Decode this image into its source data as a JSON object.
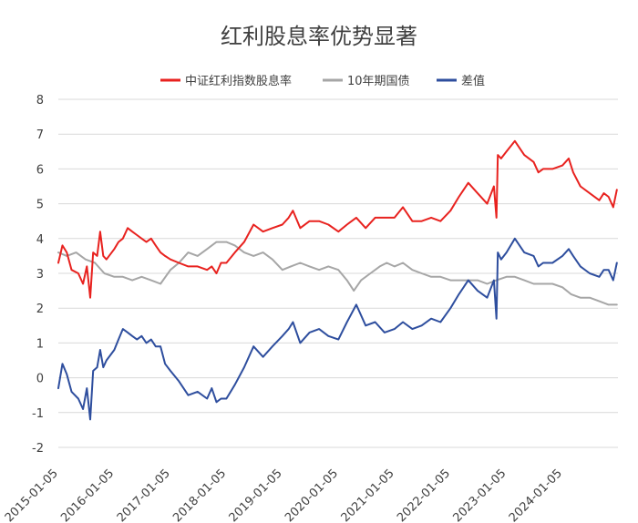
{
  "chart_data": {
    "type": "line",
    "title": "红利股息率优势显著",
    "xlabel": "",
    "ylabel": "",
    "ylim": [
      -2,
      8
    ],
    "y_ticks": [
      "8",
      "7",
      "6",
      "5",
      "4",
      "3",
      "2",
      "1",
      "0",
      "-1",
      "-2"
    ],
    "x_ticks": [
      "2015-01-05",
      "2016-01-05",
      "2017-01-05",
      "2018-01-05",
      "2019-01-05",
      "2020-01-05",
      "2021-01-05",
      "2022-01-05",
      "2023-01-05",
      "2024-01-05"
    ],
    "grid": true,
    "legend_position": "top",
    "series": [
      {
        "name": "中证红利指数股息率",
        "color": "#e8221f",
        "points": [
          [
            "2015-01-05",
            3.3
          ],
          [
            "2015-02-01",
            3.8
          ],
          [
            "2015-03-01",
            3.6
          ],
          [
            "2015-04-01",
            3.1
          ],
          [
            "2015-05-15",
            3.0
          ],
          [
            "2015-06-15",
            2.7
          ],
          [
            "2015-07-10",
            3.2
          ],
          [
            "2015-08-01",
            2.3
          ],
          [
            "2015-08-20",
            3.6
          ],
          [
            "2015-09-15",
            3.5
          ],
          [
            "2015-10-05",
            4.2
          ],
          [
            "2015-10-25",
            3.5
          ],
          [
            "2015-11-15",
            3.4
          ],
          [
            "2016-01-05",
            3.7
          ],
          [
            "2016-02-01",
            3.9
          ],
          [
            "2016-03-01",
            4.0
          ],
          [
            "2016-04-01",
            4.3
          ],
          [
            "2016-05-01",
            4.2
          ],
          [
            "2016-06-01",
            4.1
          ],
          [
            "2016-07-01",
            4.0
          ],
          [
            "2016-08-01",
            3.9
          ],
          [
            "2016-09-01",
            4.0
          ],
          [
            "2016-10-01",
            3.8
          ],
          [
            "2016-11-01",
            3.6
          ],
          [
            "2016-12-01",
            3.5
          ],
          [
            "2017-01-05",
            3.4
          ],
          [
            "2017-03-01",
            3.3
          ],
          [
            "2017-05-01",
            3.2
          ],
          [
            "2017-07-01",
            3.2
          ],
          [
            "2017-09-01",
            3.1
          ],
          [
            "2017-10-01",
            3.2
          ],
          [
            "2017-11-01",
            3.0
          ],
          [
            "2017-12-01",
            3.3
          ],
          [
            "2018-01-05",
            3.3
          ],
          [
            "2018-03-01",
            3.6
          ],
          [
            "2018-05-01",
            3.9
          ],
          [
            "2018-07-01",
            4.4
          ],
          [
            "2018-09-01",
            4.2
          ],
          [
            "2018-11-01",
            4.3
          ],
          [
            "2019-01-05",
            4.4
          ],
          [
            "2019-02-15",
            4.6
          ],
          [
            "2019-03-15",
            4.8
          ],
          [
            "2019-05-01",
            4.3
          ],
          [
            "2019-07-01",
            4.5
          ],
          [
            "2019-09-01",
            4.5
          ],
          [
            "2019-11-01",
            4.4
          ],
          [
            "2020-01-05",
            4.2
          ],
          [
            "2020-03-01",
            4.4
          ],
          [
            "2020-05-01",
            4.6
          ],
          [
            "2020-07-01",
            4.3
          ],
          [
            "2020-09-01",
            4.6
          ],
          [
            "2020-11-01",
            4.6
          ],
          [
            "2021-01-05",
            4.6
          ],
          [
            "2021-03-01",
            4.9
          ],
          [
            "2021-05-01",
            4.5
          ],
          [
            "2021-07-01",
            4.5
          ],
          [
            "2021-09-01",
            4.6
          ],
          [
            "2021-11-01",
            4.5
          ],
          [
            "2022-01-05",
            4.8
          ],
          [
            "2022-03-01",
            5.2
          ],
          [
            "2022-05-01",
            5.6
          ],
          [
            "2022-07-01",
            5.3
          ],
          [
            "2022-09-01",
            5.0
          ],
          [
            "2022-10-15",
            5.5
          ],
          [
            "2022-11-01",
            4.6
          ],
          [
            "2022-11-10",
            6.4
          ],
          [
            "2022-12-01",
            6.3
          ],
          [
            "2023-01-05",
            6.5
          ],
          [
            "2023-03-01",
            6.8
          ],
          [
            "2023-05-01",
            6.4
          ],
          [
            "2023-07-01",
            6.2
          ],
          [
            "2023-08-01",
            5.9
          ],
          [
            "2023-09-01",
            6.0
          ],
          [
            "2023-11-01",
            6.0
          ],
          [
            "2024-01-05",
            6.1
          ],
          [
            "2024-02-15",
            6.3
          ],
          [
            "2024-03-15",
            5.9
          ],
          [
            "2024-05-01",
            5.5
          ],
          [
            "2024-07-01",
            5.3
          ],
          [
            "2024-09-01",
            5.1
          ],
          [
            "2024-10-01",
            5.3
          ],
          [
            "2024-11-01",
            5.2
          ],
          [
            "2024-12-01",
            4.9
          ],
          [
            "2024-12-25",
            5.4
          ]
        ]
      },
      {
        "name": "10年期国债",
        "color": "#a6a6a6",
        "points": [
          [
            "2015-01-05",
            3.6
          ],
          [
            "2015-03-01",
            3.5
          ],
          [
            "2015-05-01",
            3.6
          ],
          [
            "2015-07-01",
            3.4
          ],
          [
            "2015-09-01",
            3.3
          ],
          [
            "2015-11-01",
            3.0
          ],
          [
            "2016-01-05",
            2.9
          ],
          [
            "2016-03-01",
            2.9
          ],
          [
            "2016-05-01",
            2.8
          ],
          [
            "2016-07-01",
            2.9
          ],
          [
            "2016-09-01",
            2.8
          ],
          [
            "2016-11-01",
            2.7
          ],
          [
            "2017-01-05",
            3.1
          ],
          [
            "2017-03-01",
            3.3
          ],
          [
            "2017-05-01",
            3.6
          ],
          [
            "2017-07-01",
            3.5
          ],
          [
            "2017-09-01",
            3.7
          ],
          [
            "2017-11-01",
            3.9
          ],
          [
            "2018-01-05",
            3.9
          ],
          [
            "2018-03-01",
            3.8
          ],
          [
            "2018-05-01",
            3.6
          ],
          [
            "2018-07-01",
            3.5
          ],
          [
            "2018-09-01",
            3.6
          ],
          [
            "2018-11-01",
            3.4
          ],
          [
            "2019-01-05",
            3.1
          ],
          [
            "2019-03-01",
            3.2
          ],
          [
            "2019-05-01",
            3.3
          ],
          [
            "2019-07-01",
            3.2
          ],
          [
            "2019-09-01",
            3.1
          ],
          [
            "2019-11-01",
            3.2
          ],
          [
            "2020-01-05",
            3.1
          ],
          [
            "2020-03-01",
            2.8
          ],
          [
            "2020-04-15",
            2.5
          ],
          [
            "2020-06-01",
            2.8
          ],
          [
            "2020-08-01",
            3.0
          ],
          [
            "2020-10-01",
            3.2
          ],
          [
            "2020-11-15",
            3.3
          ],
          [
            "2021-01-05",
            3.2
          ],
          [
            "2021-03-01",
            3.3
          ],
          [
            "2021-05-01",
            3.1
          ],
          [
            "2021-07-01",
            3.0
          ],
          [
            "2021-09-01",
            2.9
          ],
          [
            "2021-11-01",
            2.9
          ],
          [
            "2022-01-05",
            2.8
          ],
          [
            "2022-03-01",
            2.8
          ],
          [
            "2022-05-01",
            2.8
          ],
          [
            "2022-07-01",
            2.8
          ],
          [
            "2022-09-01",
            2.7
          ],
          [
            "2022-11-01",
            2.8
          ],
          [
            "2023-01-05",
            2.9
          ],
          [
            "2023-03-01",
            2.9
          ],
          [
            "2023-05-01",
            2.8
          ],
          [
            "2023-07-01",
            2.7
          ],
          [
            "2023-09-01",
            2.7
          ],
          [
            "2023-11-01",
            2.7
          ],
          [
            "2024-01-05",
            2.6
          ],
          [
            "2024-03-01",
            2.4
          ],
          [
            "2024-05-01",
            2.3
          ],
          [
            "2024-07-01",
            2.3
          ],
          [
            "2024-09-01",
            2.2
          ],
          [
            "2024-11-01",
            2.1
          ],
          [
            "2024-12-25",
            2.1
          ]
        ]
      },
      {
        "name": "差值",
        "color": "#2e4e9e",
        "points": [
          [
            "2015-01-05",
            -0.3
          ],
          [
            "2015-02-01",
            0.4
          ],
          [
            "2015-03-01",
            0.1
          ],
          [
            "2015-04-01",
            -0.4
          ],
          [
            "2015-05-15",
            -0.6
          ],
          [
            "2015-06-15",
            -0.9
          ],
          [
            "2015-07-10",
            -0.3
          ],
          [
            "2015-08-01",
            -1.2
          ],
          [
            "2015-08-20",
            0.2
          ],
          [
            "2015-09-15",
            0.3
          ],
          [
            "2015-10-05",
            0.8
          ],
          [
            "2015-10-25",
            0.3
          ],
          [
            "2015-11-15",
            0.5
          ],
          [
            "2016-01-05",
            0.8
          ],
          [
            "2016-02-01",
            1.1
          ],
          [
            "2016-03-01",
            1.4
          ],
          [
            "2016-04-01",
            1.3
          ],
          [
            "2016-05-01",
            1.2
          ],
          [
            "2016-06-01",
            1.1
          ],
          [
            "2016-07-01",
            1.2
          ],
          [
            "2016-08-01",
            1.0
          ],
          [
            "2016-09-01",
            1.1
          ],
          [
            "2016-10-01",
            0.9
          ],
          [
            "2016-11-01",
            0.9
          ],
          [
            "2016-12-01",
            0.4
          ],
          [
            "2017-01-05",
            0.2
          ],
          [
            "2017-03-01",
            -0.1
          ],
          [
            "2017-05-01",
            -0.5
          ],
          [
            "2017-07-01",
            -0.4
          ],
          [
            "2017-09-01",
            -0.6
          ],
          [
            "2017-10-01",
            -0.3
          ],
          [
            "2017-11-01",
            -0.7
          ],
          [
            "2017-12-01",
            -0.6
          ],
          [
            "2018-01-05",
            -0.6
          ],
          [
            "2018-03-01",
            -0.2
          ],
          [
            "2018-05-01",
            0.3
          ],
          [
            "2018-07-01",
            0.9
          ],
          [
            "2018-09-01",
            0.6
          ],
          [
            "2018-11-01",
            0.9
          ],
          [
            "2019-01-05",
            1.2
          ],
          [
            "2019-02-15",
            1.4
          ],
          [
            "2019-03-15",
            1.6
          ],
          [
            "2019-05-01",
            1.0
          ],
          [
            "2019-07-01",
            1.3
          ],
          [
            "2019-09-01",
            1.4
          ],
          [
            "2019-11-01",
            1.2
          ],
          [
            "2020-01-05",
            1.1
          ],
          [
            "2020-03-01",
            1.6
          ],
          [
            "2020-05-01",
            2.1
          ],
          [
            "2020-07-01",
            1.5
          ],
          [
            "2020-09-01",
            1.6
          ],
          [
            "2020-11-01",
            1.3
          ],
          [
            "2021-01-05",
            1.4
          ],
          [
            "2021-03-01",
            1.6
          ],
          [
            "2021-05-01",
            1.4
          ],
          [
            "2021-07-01",
            1.5
          ],
          [
            "2021-09-01",
            1.7
          ],
          [
            "2021-11-01",
            1.6
          ],
          [
            "2022-01-05",
            2.0
          ],
          [
            "2022-03-01",
            2.4
          ],
          [
            "2022-05-01",
            2.8
          ],
          [
            "2022-07-01",
            2.5
          ],
          [
            "2022-09-01",
            2.3
          ],
          [
            "2022-10-15",
            2.8
          ],
          [
            "2022-11-01",
            1.7
          ],
          [
            "2022-11-10",
            3.6
          ],
          [
            "2022-12-01",
            3.4
          ],
          [
            "2023-01-05",
            3.6
          ],
          [
            "2023-03-01",
            4.0
          ],
          [
            "2023-05-01",
            3.6
          ],
          [
            "2023-07-01",
            3.5
          ],
          [
            "2023-08-01",
            3.2
          ],
          [
            "2023-09-01",
            3.3
          ],
          [
            "2023-11-01",
            3.3
          ],
          [
            "2024-01-05",
            3.5
          ],
          [
            "2024-02-15",
            3.7
          ],
          [
            "2024-03-15",
            3.5
          ],
          [
            "2024-05-01",
            3.2
          ],
          [
            "2024-07-01",
            3.0
          ],
          [
            "2024-09-01",
            2.9
          ],
          [
            "2024-10-01",
            3.1
          ],
          [
            "2024-11-01",
            3.1
          ],
          [
            "2024-12-01",
            2.8
          ],
          [
            "2024-12-25",
            3.3
          ]
        ]
      }
    ]
  }
}
